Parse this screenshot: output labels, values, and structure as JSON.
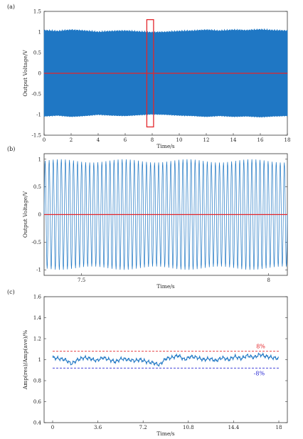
{
  "colors": {
    "signal": "#1f77c4",
    "reference": "#e3262b",
    "upper_band": "#e3262b",
    "lower_band": "#2a2ad4",
    "axes": "#333333"
  },
  "chart_data": [
    {
      "type": "line",
      "panel_label": "(a)",
      "xlabel": "Time/s",
      "ylabel": "Output Voltage/V",
      "xlim": [
        0,
        18
      ],
      "ylim": [
        -1.5,
        1.5
      ],
      "xticks": [
        "0",
        "2",
        "4",
        "6",
        "8",
        "10",
        "12",
        "14",
        "16",
        "18"
      ],
      "yticks": [
        "1.5",
        "1",
        "0.5",
        "0",
        "-0.5",
        "-1",
        "-1.5"
      ],
      "series": [
        {
          "role": "dense oscillating output voltage",
          "amplitude_envelope": [
            [
              0,
              1.04
            ],
            [
              1,
              1.02
            ],
            [
              2,
              1.05
            ],
            [
              3,
              1.03
            ],
            [
              4,
              1.0
            ],
            [
              5,
              1.02
            ],
            [
              6,
              1.03
            ],
            [
              7,
              1.01
            ],
            [
              8,
              0.99
            ],
            [
              9,
              1.0
            ],
            [
              10,
              1.02
            ],
            [
              11,
              1.03
            ],
            [
              12,
              1.05
            ],
            [
              13,
              1.03
            ],
            [
              14,
              1.05
            ],
            [
              15,
              1.04
            ],
            [
              16,
              1.06
            ],
            [
              17,
              1.04
            ],
            [
              18,
              1.03
            ]
          ]
        },
        {
          "role": "zero reference line",
          "y": 0
        }
      ],
      "highlight_box": {
        "x_range": [
          7.6,
          8.1
        ],
        "y_range": [
          -1.3,
          1.3
        ]
      }
    },
    {
      "type": "line",
      "panel_label": "(b)",
      "xlabel": "Time/s",
      "ylabel": "Output Voltage/V",
      "xlim": [
        7.4,
        8.05
      ],
      "ylim": [
        -1.1,
        1.1
      ],
      "xticks": [
        "7.5",
        "8"
      ],
      "yticks": [
        "1",
        "0.5",
        "0",
        "-0.5",
        "-1"
      ],
      "series": [
        {
          "role": "zoomed sinusoidal output voltage",
          "cycles": 60,
          "amplitude": 1.0
        },
        {
          "role": "zero reference line",
          "y": 0
        }
      ]
    },
    {
      "type": "line",
      "panel_label": "(c)",
      "xlabel": "Time/s",
      "ylabel": "Amp(res)/Amp(ave)/%",
      "xlim": [
        0,
        18
      ],
      "ylim": [
        0.4,
        1.6
      ],
      "xticks": [
        "0",
        "3.6",
        "7.2",
        "10.8",
        "14.4",
        "18"
      ],
      "yticks": [
        "1.6",
        "1.4",
        "1.2",
        "1",
        "0.8",
        "0.6",
        "0.4"
      ],
      "series": [
        {
          "role": "amplitude ratio",
          "x": [
            0,
            0.5,
            1,
            1.5,
            2,
            2.5,
            3,
            3.5,
            4,
            4.5,
            5,
            5.5,
            6,
            6.5,
            7,
            7.5,
            8,
            8.5,
            9,
            9.5,
            10,
            10.5,
            11,
            11.5,
            12,
            12.5,
            13,
            13.5,
            14,
            14.5,
            15,
            15.5,
            16,
            16.5,
            17,
            17.5,
            18
          ],
          "y": [
            1.02,
            1.01,
            1.0,
            0.96,
            1.0,
            1.02,
            1.01,
            0.99,
            1.02,
            1.0,
            0.98,
            1.01,
            1.0,
            0.99,
            1.0,
            0.98,
            0.97,
            0.95,
            1.01,
            1.02,
            1.04,
            1.0,
            1.03,
            1.02,
            1.0,
            1.01,
            0.99,
            1.02,
            1.0,
            1.03,
            1.01,
            1.04,
            1.02,
            1.05,
            1.03,
            1.02,
            1.01
          ]
        },
        {
          "role": "upper tolerance",
          "y": 1.08,
          "label": "8%"
        },
        {
          "role": "lower tolerance",
          "y": 0.92,
          "label": "-8%"
        }
      ]
    }
  ]
}
